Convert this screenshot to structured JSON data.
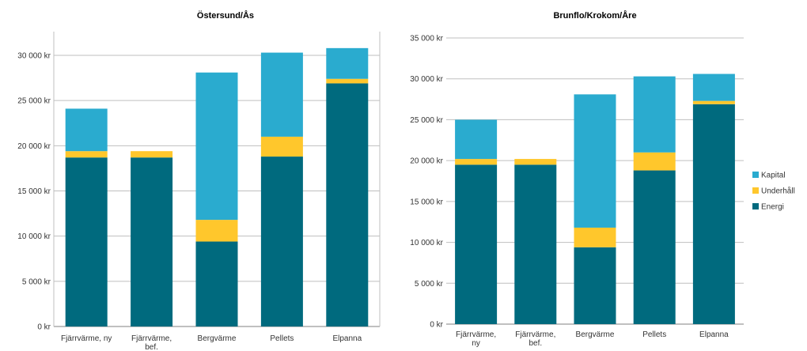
{
  "chart_data": [
    {
      "type": "bar",
      "stacked": true,
      "title": "Östersund/Ås",
      "categories": [
        [
          "Fjärrvärme, ny"
        ],
        [
          "Fjärrvärme,",
          "bef."
        ],
        [
          "Bergvärme"
        ],
        [
          "Pellets"
        ],
        [
          "Elpanna"
        ]
      ],
      "series": [
        {
          "name": "Energi",
          "values": [
            18700,
            18700,
            9400,
            18800,
            26900
          ]
        },
        {
          "name": "Underhåll",
          "values": [
            700,
            700,
            2400,
            2200,
            500
          ]
        },
        {
          "name": "Kapital",
          "values": [
            4700,
            0,
            16300,
            9300,
            3400
          ]
        }
      ],
      "ylim": [
        0,
        30000
      ],
      "yticks": [
        "0 kr",
        "5 000 kr",
        "10 000 kr",
        "15 000 kr",
        "20 000 kr",
        "25 000 kr",
        "30 000 kr"
      ],
      "grid": true
    },
    {
      "type": "bar",
      "stacked": true,
      "title": "Brunflo/Krokom/Åre",
      "categories": [
        [
          "Fjärrvärme,",
          "ny"
        ],
        [
          "Fjärrvärme,",
          "bef."
        ],
        [
          "Bergvärme"
        ],
        [
          "Pellets"
        ],
        [
          "Elpanna"
        ]
      ],
      "series": [
        {
          "name": "Energi",
          "values": [
            19500,
            19500,
            9400,
            18800,
            26900
          ]
        },
        {
          "name": "Underhåll",
          "values": [
            700,
            700,
            2400,
            2200,
            400
          ]
        },
        {
          "name": "Kapital",
          "values": [
            4800,
            0,
            16300,
            9300,
            3300
          ]
        }
      ],
      "ylim": [
        0,
        35000
      ],
      "yticks": [
        "0 kr",
        "5 000 kr",
        "10 000 kr",
        "15 000 kr",
        "20 000 kr",
        "25 000 kr",
        "30 000 kr",
        "35 000 kr"
      ],
      "grid": true
    }
  ],
  "legend": {
    "placement": "right",
    "items": [
      {
        "name": "Kapital",
        "color": "#2AABCF"
      },
      {
        "name": "Underhåll",
        "color": "#FFC72C"
      },
      {
        "name": "Energi",
        "color": "#006A7E"
      }
    ]
  },
  "colors": {
    "Energi": "#006A7E",
    "Underhåll": "#FFC72C",
    "Kapital": "#2AABCF"
  }
}
